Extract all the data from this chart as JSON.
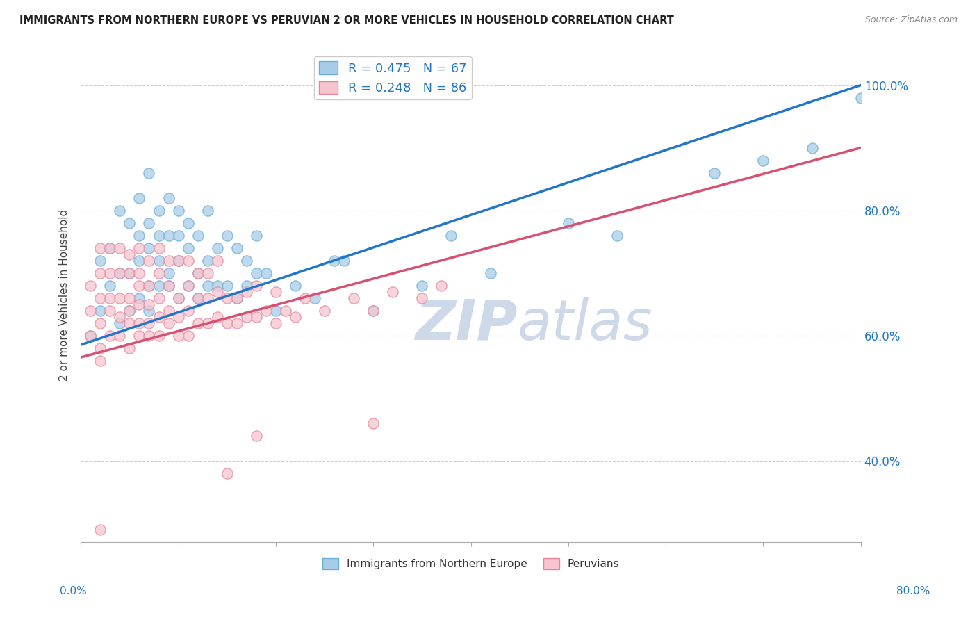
{
  "title": "IMMIGRANTS FROM NORTHERN EUROPE VS PERUVIAN 2 OR MORE VEHICLES IN HOUSEHOLD CORRELATION CHART",
  "source": "Source: ZipAtlas.com",
  "ylabel": "2 or more Vehicles in Household",
  "legend_R1": "R = 0.475",
  "legend_N1": "N = 67",
  "legend_R2": "R = 0.248",
  "legend_N2": "N = 86",
  "legend_label1": "Immigrants from Northern Europe",
  "legend_label2": "Peruvians",
  "blue_color": "#a8cce8",
  "blue_edge": "#6aaed6",
  "pink_color": "#f7c5d0",
  "pink_edge": "#e8849a",
  "trend_blue": "#2176c7",
  "trend_pink": "#d94f70",
  "watermark_color": "#cdd8e8",
  "xmin": 0.0,
  "xmax": 0.8,
  "ymin": 0.27,
  "ymax": 1.06,
  "yticks": [
    0.4,
    0.6,
    0.8,
    1.0
  ],
  "ytick_labels": [
    "40.0%",
    "60.0%",
    "80.0%",
    "100.0%"
  ],
  "blue_trend_x0": 0.0,
  "blue_trend_x1": 0.8,
  "blue_trend_y0": 0.585,
  "blue_trend_y1": 1.0,
  "pink_trend_x0": 0.0,
  "pink_trend_x1": 0.8,
  "pink_trend_y0": 0.565,
  "pink_trend_y1": 0.9,
  "blue_x": [
    0.01,
    0.02,
    0.02,
    0.03,
    0.03,
    0.04,
    0.04,
    0.04,
    0.05,
    0.05,
    0.05,
    0.06,
    0.06,
    0.06,
    0.06,
    0.07,
    0.07,
    0.07,
    0.07,
    0.07,
    0.08,
    0.08,
    0.08,
    0.08,
    0.09,
    0.09,
    0.09,
    0.09,
    0.1,
    0.1,
    0.1,
    0.1,
    0.11,
    0.11,
    0.11,
    0.12,
    0.12,
    0.12,
    0.13,
    0.13,
    0.13,
    0.14,
    0.14,
    0.15,
    0.15,
    0.16,
    0.16,
    0.17,
    0.17,
    0.18,
    0.18,
    0.19,
    0.2,
    0.22,
    0.24,
    0.26,
    0.27,
    0.3,
    0.35,
    0.38,
    0.42,
    0.5,
    0.55,
    0.65,
    0.7,
    0.75,
    0.8
  ],
  "blue_y": [
    0.6,
    0.64,
    0.72,
    0.68,
    0.74,
    0.62,
    0.7,
    0.8,
    0.64,
    0.7,
    0.78,
    0.66,
    0.72,
    0.76,
    0.82,
    0.64,
    0.68,
    0.74,
    0.78,
    0.86,
    0.68,
    0.72,
    0.76,
    0.8,
    0.68,
    0.7,
    0.76,
    0.82,
    0.66,
    0.72,
    0.76,
    0.8,
    0.68,
    0.74,
    0.78,
    0.66,
    0.7,
    0.76,
    0.68,
    0.72,
    0.8,
    0.68,
    0.74,
    0.68,
    0.76,
    0.66,
    0.74,
    0.68,
    0.72,
    0.7,
    0.76,
    0.7,
    0.64,
    0.68,
    0.66,
    0.72,
    0.72,
    0.64,
    0.68,
    0.76,
    0.7,
    0.78,
    0.76,
    0.86,
    0.88,
    0.9,
    0.98
  ],
  "pink_x": [
    0.01,
    0.01,
    0.01,
    0.02,
    0.02,
    0.02,
    0.02,
    0.02,
    0.03,
    0.03,
    0.03,
    0.03,
    0.03,
    0.04,
    0.04,
    0.04,
    0.04,
    0.04,
    0.05,
    0.05,
    0.05,
    0.05,
    0.05,
    0.05,
    0.06,
    0.06,
    0.06,
    0.06,
    0.06,
    0.06,
    0.07,
    0.07,
    0.07,
    0.07,
    0.07,
    0.08,
    0.08,
    0.08,
    0.08,
    0.08,
    0.09,
    0.09,
    0.09,
    0.09,
    0.1,
    0.1,
    0.1,
    0.1,
    0.11,
    0.11,
    0.11,
    0.11,
    0.12,
    0.12,
    0.12,
    0.13,
    0.13,
    0.13,
    0.14,
    0.14,
    0.14,
    0.15,
    0.15,
    0.16,
    0.16,
    0.17,
    0.17,
    0.18,
    0.18,
    0.19,
    0.2,
    0.2,
    0.21,
    0.22,
    0.23,
    0.25,
    0.28,
    0.3,
    0.32,
    0.35,
    0.37,
    0.3,
    0.15,
    0.02,
    0.02,
    0.18
  ],
  "pink_y": [
    0.6,
    0.64,
    0.68,
    0.58,
    0.62,
    0.66,
    0.7,
    0.74,
    0.6,
    0.64,
    0.66,
    0.7,
    0.74,
    0.6,
    0.63,
    0.66,
    0.7,
    0.74,
    0.58,
    0.62,
    0.64,
    0.66,
    0.7,
    0.73,
    0.6,
    0.62,
    0.65,
    0.68,
    0.7,
    0.74,
    0.6,
    0.62,
    0.65,
    0.68,
    0.72,
    0.6,
    0.63,
    0.66,
    0.7,
    0.74,
    0.62,
    0.64,
    0.68,
    0.72,
    0.6,
    0.63,
    0.66,
    0.72,
    0.6,
    0.64,
    0.68,
    0.72,
    0.62,
    0.66,
    0.7,
    0.62,
    0.66,
    0.7,
    0.63,
    0.67,
    0.72,
    0.62,
    0.66,
    0.62,
    0.66,
    0.63,
    0.67,
    0.63,
    0.68,
    0.64,
    0.62,
    0.67,
    0.64,
    0.63,
    0.66,
    0.64,
    0.66,
    0.64,
    0.67,
    0.66,
    0.68,
    0.46,
    0.38,
    0.29,
    0.56,
    0.44
  ]
}
